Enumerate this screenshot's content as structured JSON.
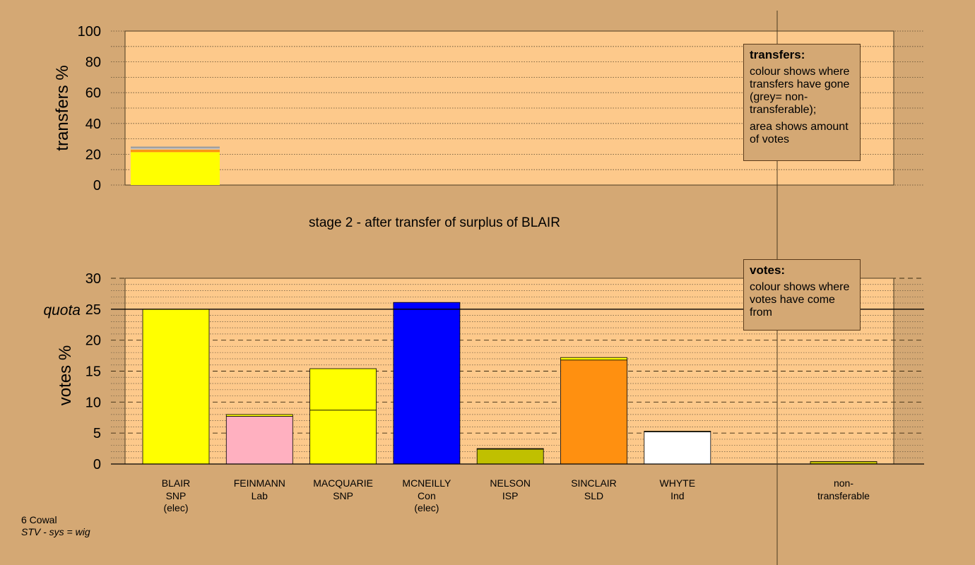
{
  "footer": {
    "constituency": "6 Cowal",
    "system": "STV - sys = wig"
  },
  "legend_transfers": {
    "title": "transfers:",
    "line1": "colour shows where transfers have gone (grey= non-transferable);",
    "line2": "area shows amount of votes"
  },
  "legend_votes": {
    "title": "votes:",
    "line1": "colour shows where votes have come from"
  },
  "colors": {
    "background": "#d4a874",
    "plot": "#fdc98b",
    "SNP": "#ffff00",
    "Lab": "#ffb0c0",
    "Con": "#0000ff",
    "ISP": "#c0c000",
    "SLD": "#ff9010",
    "Ind": "#ffffff",
    "nontransferable": "#a0a0a0"
  },
  "chart_data": [
    {
      "type": "bar",
      "id": "transfers",
      "ylabel": "transfers %",
      "ylim": [
        0,
        100
      ],
      "yticks": [
        0,
        20,
        40,
        60,
        80,
        100
      ],
      "grid": true,
      "bars": [
        {
          "source": "BLAIR",
          "segments": [
            {
              "to": "MACQUARIE SNP",
              "color": "#ffff00",
              "value": 21.4
            },
            {
              "to": "SINCLAIR SLD",
              "color": "#ff9010",
              "value": 1.4
            },
            {
              "to": "NELSON ISP",
              "color": "#c0c000",
              "value": 0.3
            },
            {
              "to": "FEINMANN Lab",
              "color": "#ffb0c0",
              "value": 0.3
            },
            {
              "to": "WHYTE Ind",
              "color": "#ffffff",
              "value": 0.2
            },
            {
              "to": "non-transferable",
              "color": "#a0a0a0",
              "value": 1.4
            }
          ]
        }
      ]
    },
    {
      "type": "bar",
      "id": "votes",
      "title": "stage 2 - after transfer of surplus of BLAIR",
      "ylabel": "votes %",
      "ylim": [
        0,
        30
      ],
      "yticks": [
        0,
        5,
        10,
        15,
        20,
        25,
        30
      ],
      "quota": 25,
      "quota_label": "quota",
      "grid": true,
      "categories": [
        {
          "name": "BLAIR",
          "party": "SNP",
          "note": "(elec)",
          "segments": [
            {
              "color": "#ffff00",
              "value": 25.0
            }
          ]
        },
        {
          "name": "FEINMANN",
          "party": "Lab",
          "note": "",
          "segments": [
            {
              "color": "#ffb0c0",
              "value": 7.7
            },
            {
              "color": "#ffff00",
              "value": 0.3
            }
          ]
        },
        {
          "name": "MACQUARIE",
          "party": "SNP",
          "note": "",
          "segments": [
            {
              "color": "#ffff00",
              "value": 8.7
            },
            {
              "color": "#ffff00",
              "value": 6.7
            }
          ]
        },
        {
          "name": "MCNEILLY",
          "party": "Con",
          "note": "(elec)",
          "segments": [
            {
              "color": "#0000ff",
              "value": 26.1
            }
          ]
        },
        {
          "name": "NELSON",
          "party": "ISP",
          "note": "",
          "segments": [
            {
              "color": "#c0c000",
              "value": 2.4
            },
            {
              "color": "#ffff00",
              "value": 0.1
            }
          ]
        },
        {
          "name": "SINCLAIR",
          "party": "SLD",
          "note": "",
          "segments": [
            {
              "color": "#ff9010",
              "value": 16.8
            },
            {
              "color": "#ffff00",
              "value": 0.4
            }
          ]
        },
        {
          "name": "WHYTE",
          "party": "Ind",
          "note": "",
          "segments": [
            {
              "color": "#ffffff",
              "value": 5.2
            },
            {
              "color": "#ffff00",
              "value": 0.1
            }
          ]
        }
      ],
      "nontransferable": {
        "label_line1": "non-",
        "label_line2": "transferable",
        "segments": [
          {
            "color": "#c0c000",
            "value": 0.4
          }
        ]
      }
    }
  ]
}
